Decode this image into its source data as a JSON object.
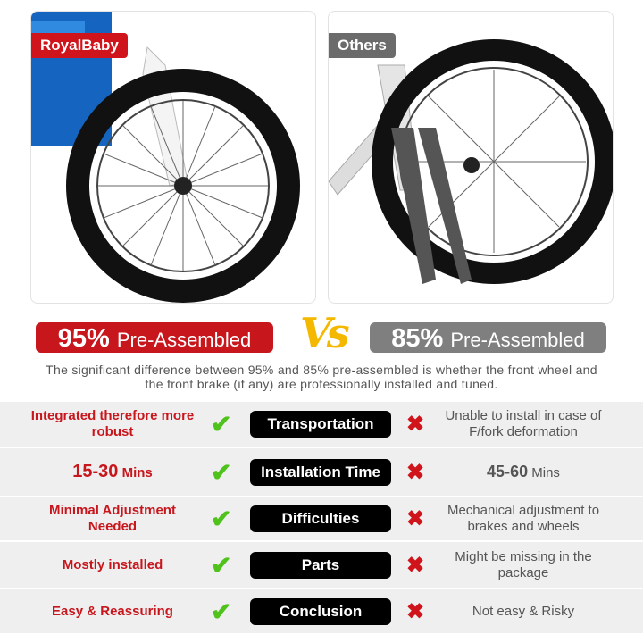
{
  "left_panel": {
    "brand_tag": "RoyalBaby",
    "tag_color": "#d0141b"
  },
  "right_panel": {
    "brand_tag": "Others",
    "tag_color": "#6b6b6b"
  },
  "left_badge": {
    "percent": "95%",
    "label": "Pre-Assembled",
    "color": "#c8161d"
  },
  "vs": "Vs",
  "right_badge": {
    "percent": "85%",
    "label": "Pre-Assembled",
    "color": "#7f7f7f"
  },
  "description": "The significant difference between 95% and 85% pre-assembled is whether the front wheel and the front brake (if any) are professionally installed and tuned.",
  "rows": [
    {
      "left": "Integrated therefore more robust",
      "category": "Transportation",
      "right": "Unable to install in case of F/fork deformation"
    },
    {
      "left_value": "15-30",
      "left_unit": "Mins",
      "category": "Installation Time",
      "right_value": "45-60",
      "right_unit": "Mins"
    },
    {
      "left": "Minimal Adjustment Needed",
      "category": "Difficulties",
      "right": "Mechanical adjustment to brakes and wheels"
    },
    {
      "left": "Mostly installed",
      "category": "Parts",
      "right": "Might be missing in the package"
    },
    {
      "left": "Easy & Reassuring",
      "category": "Conclusion",
      "right": "Not easy & Risky"
    }
  ],
  "icons": {
    "check": "check-icon",
    "cross": "cross-icon"
  }
}
